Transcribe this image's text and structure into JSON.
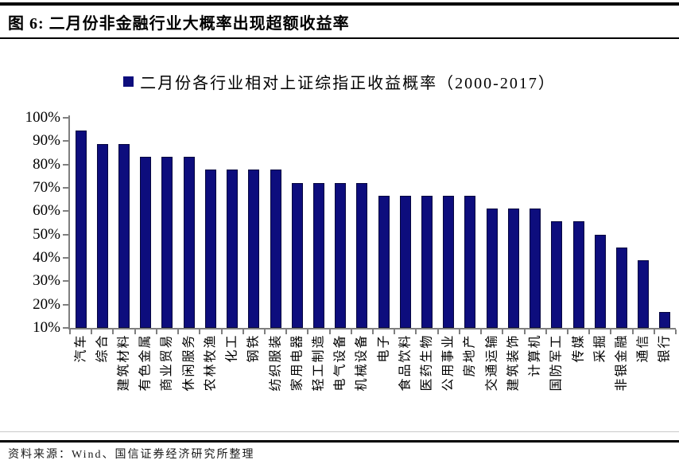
{
  "header": {
    "title": "图 6:  二月份非金融行业大概率出现超额收益率"
  },
  "chart_data": {
    "type": "bar",
    "title": "二月份各行业相对上证综指正收益概率（2000-2017）",
    "legend_position": "top",
    "categories": [
      "汽车",
      "综合",
      "建筑材料",
      "有色金属",
      "商业贸易",
      "休闲服务",
      "农林牧渔",
      "化工",
      "钢铁",
      "纺织服装",
      "家用电器",
      "轻工制造",
      "电气设备",
      "机械设备",
      "电子",
      "食品饮料",
      "医药生物",
      "公用事业",
      "房地产",
      "交通运输",
      "建筑装饰",
      "计算机",
      "国防军工",
      "传媒",
      "采掘",
      "非银金融",
      "通信",
      "银行"
    ],
    "values": [
      94.4,
      88.9,
      88.9,
      83.3,
      83.3,
      83.3,
      77.8,
      77.8,
      77.8,
      77.8,
      72.2,
      72.2,
      72.2,
      72.2,
      66.7,
      66.7,
      66.7,
      66.7,
      66.7,
      61.1,
      61.1,
      61.1,
      55.6,
      55.6,
      50.0,
      44.4,
      38.9,
      16.7
    ],
    "xlabel": "",
    "ylabel": "",
    "ylim": [
      10,
      100
    ],
    "ytick_step": 10,
    "ytick_suffix": "%",
    "grid": false,
    "bar_color": "#0D0D7D",
    "bar_border_color": "#06063F",
    "axis_color": "#7F7F7F"
  },
  "footer": {
    "source": "资料来源：Wind、国信证券经济研究所整理"
  }
}
